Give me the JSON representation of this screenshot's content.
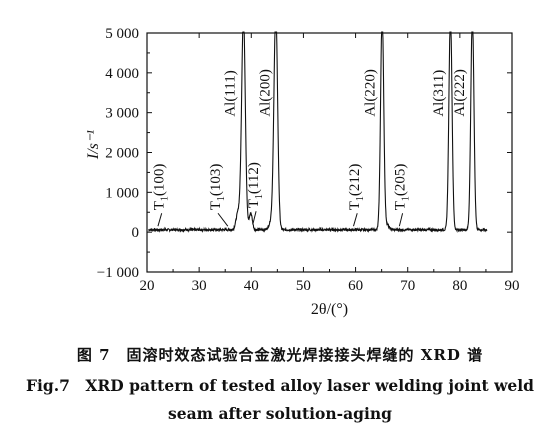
{
  "chart_data": {
    "type": "line",
    "xlabel": "2θ/(°)",
    "ylabel": "I/s⁻¹",
    "xlim": [
      20,
      90
    ],
    "ylim": [
      -1000,
      5000
    ],
    "x_ticks": [
      "20",
      "30",
      "40",
      "50",
      "60",
      "70",
      "80",
      "90"
    ],
    "y_ticks": [
      "−1 000",
      "0",
      "1 000",
      "2 000",
      "3 000",
      "4 000",
      "5 000"
    ],
    "grid": false,
    "baseline": 60,
    "peaks": [
      {
        "x": 38.5,
        "height": 5400,
        "width": 0.35
      },
      {
        "x": 44.7,
        "height": 5400,
        "width": 0.35
      },
      {
        "x": 65.1,
        "height": 5400,
        "width": 0.3
      },
      {
        "x": 78.2,
        "height": 5400,
        "width": 0.3
      },
      {
        "x": 82.4,
        "height": 5400,
        "width": 0.3
      },
      {
        "x": 37.5,
        "height": 450,
        "width": 0.4
      },
      {
        "x": 39.9,
        "height": 420,
        "width": 0.3
      },
      {
        "x": 44.0,
        "height": 250,
        "width": 0.5
      },
      {
        "x": 66.0,
        "height": 120,
        "width": 0.4
      }
    ],
    "annotations": [
      {
        "text": "T1(100)",
        "x": 23.2,
        "y": 550,
        "ptr": [
          22.1,
          150
        ]
      },
      {
        "text": "T1(103)",
        "x": 34.0,
        "y": 550,
        "ptr": [
          35.5,
          150
        ]
      },
      {
        "text": "T1(112)",
        "x": 41.3,
        "y": 600,
        "ptr": [
          40.3,
          200
        ]
      },
      {
        "text": "T1(212)",
        "x": 60.7,
        "y": 550,
        "ptr": [
          59.6,
          150
        ]
      },
      {
        "text": "T1(205)",
        "x": 69.4,
        "y": 550,
        "ptr": [
          68.4,
          150
        ]
      },
      {
        "text": "Al(111)",
        "x": 36.8,
        "y": 2900
      },
      {
        "text": "Al(200)",
        "x": 43.5,
        "y": 2900
      },
      {
        "text": "Al(220)",
        "x": 63.6,
        "y": 2900
      },
      {
        "text": "Al(311)",
        "x": 76.8,
        "y": 2900
      },
      {
        "text": "Al(222)",
        "x": 80.8,
        "y": 2900
      }
    ]
  },
  "caption": {
    "cn": "图 7　固溶时效态试验合金激光焊接接头焊缝的 XRD 谱",
    "en_line1": "Fig.7　XRD pattern of tested alloy laser welding joint weld",
    "en_line2": "seam after solution-aging"
  }
}
